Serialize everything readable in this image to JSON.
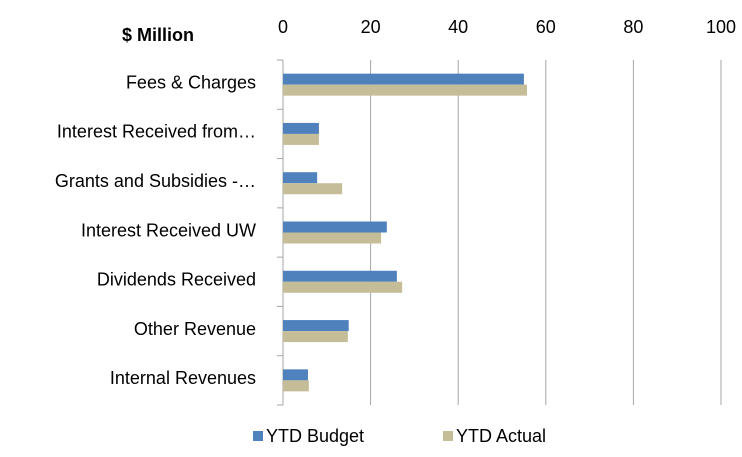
{
  "chart_data": {
    "type": "bar",
    "orientation": "horizontal",
    "title": "$ Million",
    "categories": [
      "Fees & Charges",
      "Interest Received from…",
      "Grants and Subsidies -…",
      "Interest Received UW",
      "Dividends Received",
      "Other Revenue",
      "Internal Revenues"
    ],
    "series": [
      {
        "name": "YTD Budget",
        "color": "#4f81bd",
        "values": [
          55,
          8.2,
          7.8,
          23.7,
          26,
          15,
          5.7
        ]
      },
      {
        "name": "YTD Actual",
        "color": "#c4bd97",
        "values": [
          55.7,
          8.2,
          13.5,
          22.4,
          27.2,
          14.8,
          5.9
        ]
      }
    ],
    "xlim": [
      0,
      100
    ],
    "xticks": [
      0,
      20,
      40,
      60,
      80,
      100
    ],
    "grid": true,
    "legend": "bottom"
  }
}
